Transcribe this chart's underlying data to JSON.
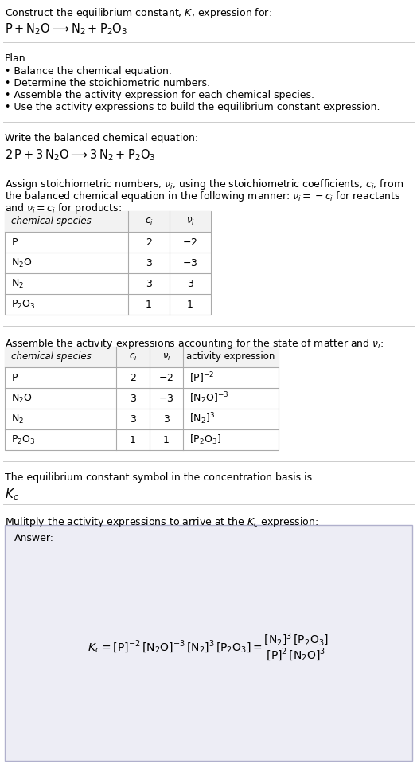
{
  "bg_color": "#ffffff",
  "line_color": "#cccccc",
  "table_line_color": "#aaaaaa",
  "answer_bg": "#eeeef5",
  "answer_border": "#aaaacc",
  "font_size": 9.0,
  "sections": {
    "title1": "Construct the equilibrium constant, $K$, expression for:",
    "title2": "$\\mathrm{P} + \\mathrm{N_2O} \\longrightarrow \\mathrm{N_2} + \\mathrm{P_2O_3}$",
    "plan_header": "Plan:",
    "plan_bullets": [
      "\\bullet  Balance the chemical equation.",
      "\\bullet  Determine the stoichiometric numbers.",
      "\\bullet  Assemble the activity expression for each chemical species.",
      "\\bullet  Use the activity expressions to build the equilibrium constant expression."
    ],
    "balanced_header": "Write the balanced chemical equation:",
    "balanced_eq": "$2\\,\\mathrm{P} + 3\\,\\mathrm{N_2O} \\longrightarrow 3\\,\\mathrm{N_2} + \\mathrm{P_2O_3}$",
    "stoich_line1": "Assign stoichiometric numbers, $\\nu_i$, using the stoichiometric coefficients, $c_i$, from",
    "stoich_line2": "the balanced chemical equation in the following manner: $\\nu_i = -c_i$ for reactants",
    "stoich_line3": "and $\\nu_i = c_i$ for products:",
    "table1_cols": [
      "chemical species",
      "$c_i$",
      "$\\nu_i$"
    ],
    "table1_rows": [
      [
        "$\\mathrm{P}$",
        "2",
        "$-2$"
      ],
      [
        "$\\mathrm{N_2O}$",
        "3",
        "$-3$"
      ],
      [
        "$\\mathrm{N_2}$",
        "3",
        "3"
      ],
      [
        "$\\mathrm{P_2O_3}$",
        "1",
        "1"
      ]
    ],
    "assemble_header": "Assemble the activity expressions accounting for the state of matter and $\\nu_i$:",
    "table2_cols": [
      "chemical species",
      "$c_i$",
      "$\\nu_i$",
      "activity expression"
    ],
    "table2_rows": [
      [
        "$\\mathrm{P}$",
        "2",
        "$-2$",
        "$[\\mathrm{P}]^{-2}$"
      ],
      [
        "$\\mathrm{N_2O}$",
        "3",
        "$-3$",
        "$[\\mathrm{N_2O}]^{-3}$"
      ],
      [
        "$\\mathrm{N_2}$",
        "3",
        "3",
        "$[\\mathrm{N_2}]^3$"
      ],
      [
        "$\\mathrm{P_2O_3}$",
        "1",
        "1",
        "$[\\mathrm{P_2O_3}]$"
      ]
    ],
    "kc_header": "The equilibrium constant symbol in the concentration basis is:",
    "kc_symbol": "$K_c$",
    "multiply_header": "Mulitply the activity expressions to arrive at the $K_c$ expression:",
    "answer_label": "Answer:",
    "answer_eq": "$K_c = [\\mathrm{P}]^{-2}\\,[\\mathrm{N_2O}]^{-3}\\,[\\mathrm{N_2}]^{3}\\,[\\mathrm{P_2O_3}] = \\dfrac{[\\mathrm{N_2}]^3\\,[\\mathrm{P_2O_3}]}{[\\mathrm{P}]^2\\,[\\mathrm{N_2O}]^3}$"
  }
}
